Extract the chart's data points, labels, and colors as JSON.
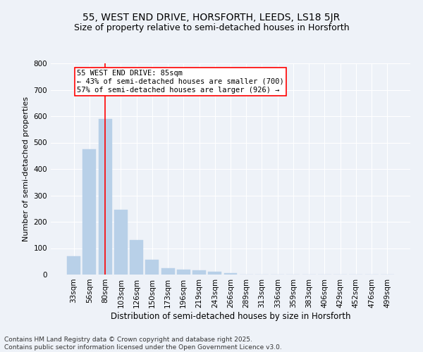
{
  "title1": "55, WEST END DRIVE, HORSFORTH, LEEDS, LS18 5JR",
  "title2": "Size of property relative to semi-detached houses in Horsforth",
  "xlabel": "Distribution of semi-detached houses by size in Horsforth",
  "ylabel": "Number of semi-detached properties",
  "categories": [
    "33sqm",
    "56sqm",
    "80sqm",
    "103sqm",
    "126sqm",
    "150sqm",
    "173sqm",
    "196sqm",
    "219sqm",
    "243sqm",
    "266sqm",
    "289sqm",
    "313sqm",
    "336sqm",
    "359sqm",
    "383sqm",
    "406sqm",
    "429sqm",
    "452sqm",
    "476sqm",
    "499sqm"
  ],
  "values": [
    70,
    475,
    590,
    245,
    130,
    55,
    25,
    20,
    15,
    10,
    5,
    0,
    0,
    0,
    0,
    0,
    0,
    0,
    0,
    0,
    0
  ],
  "bar_color": "#b8d0e8",
  "bar_edge_color": "#b8d0e8",
  "vline_x_index": 2,
  "vline_color": "red",
  "annotation_line1": "55 WEST END DRIVE: 85sqm",
  "annotation_line2": "← 43% of semi-detached houses are smaller (700)",
  "annotation_line3": "57% of semi-detached houses are larger (926) →",
  "annotation_box_color": "white",
  "annotation_box_edge": "red",
  "background_color": "#eef2f8",
  "grid_color": "white",
  "ylim": [
    0,
    800
  ],
  "yticks": [
    0,
    100,
    200,
    300,
    400,
    500,
    600,
    700,
    800
  ],
  "footnote": "Contains HM Land Registry data © Crown copyright and database right 2025.\nContains public sector information licensed under the Open Government Licence v3.0.",
  "title1_fontsize": 10,
  "title2_fontsize": 9,
  "xlabel_fontsize": 8.5,
  "ylabel_fontsize": 8,
  "tick_fontsize": 7.5,
  "annotation_fontsize": 7.5,
  "footnote_fontsize": 6.5
}
